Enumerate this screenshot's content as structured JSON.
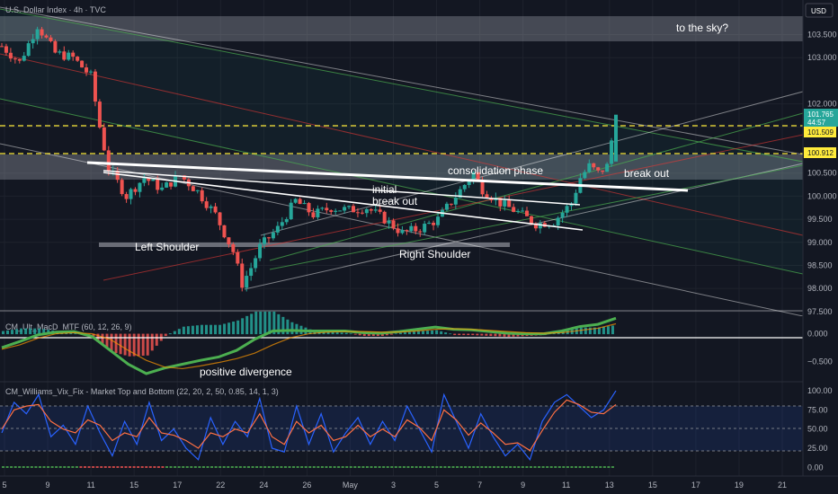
{
  "header": {
    "title": "U.S. Dollar Index · 4h · TVC",
    "currency": "USD"
  },
  "annotations": {
    "to_the_sky": "to the sky?",
    "consolidation": "consolidation phase",
    "initial_breakout_line1": "initial",
    "initial_breakout_line2": "break out",
    "break_out": "break out",
    "left_shoulder": "Left Shoulder",
    "right_shoulder": "Right Shoulder",
    "positive_divergence": "positive divergence"
  },
  "badges": {
    "last_price": "101.765",
    "countdown": "44:57",
    "level_upper": "101.509",
    "level_lower": "100.912"
  },
  "indicators": {
    "macd_title": "CM_Ult_MacD_MTF (60, 12, 26, 9)",
    "vix_title": "CM_Williams_Vix_Fix - Market Top and Bottom (22, 20, 2, 50, 0.85, 14, 1, 3)"
  },
  "colors": {
    "background": "#131722",
    "up_candle": "#26a69a",
    "down_candle": "#ef5350",
    "resistance_zone": "#b2b5be",
    "level_line": "#ffeb3b",
    "macd_green": "#4caf50",
    "macd_red": "#e53935",
    "vix_blue": "#2962ff",
    "vix_orange": "#ff7043"
  },
  "chart_data": [
    {
      "type": "candlestick",
      "title": "U.S. Dollar Index · 4h · TVC",
      "x_tick_labels": [
        "5",
        "9",
        "11",
        "15",
        "17",
        "22",
        "24",
        "26",
        "May",
        "3",
        "5",
        "7",
        "9",
        "11",
        "13",
        "15",
        "17",
        "19",
        "21"
      ],
      "y_tick_labels": [
        "103.500",
        "103.000",
        "102.000",
        "101.500",
        "100.500",
        "100.000",
        "99.500",
        "99.000",
        "98.500",
        "98.000",
        "97.500"
      ],
      "ylim": [
        97.4,
        104.25
      ],
      "price_path": [
        [
          0,
          103.25
        ],
        [
          2,
          102.9
        ],
        [
          4,
          103.7
        ],
        [
          6,
          103.1
        ],
        [
          8,
          103.0
        ],
        [
          10,
          102.6
        ],
        [
          11,
          101.5
        ],
        [
          12,
          100.6
        ],
        [
          14,
          100.0
        ],
        [
          16,
          100.4
        ],
        [
          18,
          100.15
        ],
        [
          20,
          100.45
        ],
        [
          22,
          100.1
        ],
        [
          24,
          99.6
        ],
        [
          26,
          98.8
        ],
        [
          27,
          98.1
        ],
        [
          28,
          98.45
        ],
        [
          29,
          98.9
        ],
        [
          31,
          99.3
        ],
        [
          33,
          99.9
        ],
        [
          35,
          99.6
        ],
        [
          37,
          99.75
        ],
        [
          39,
          99.7
        ],
        [
          41,
          99.75
        ],
        [
          43,
          99.5
        ],
        [
          45,
          99.2
        ],
        [
          47,
          99.3
        ],
        [
          49,
          99.5
        ],
        [
          51,
          100.0
        ],
        [
          53,
          100.5
        ],
        [
          54,
          100.15
        ],
        [
          56,
          99.85
        ],
        [
          58,
          99.65
        ],
        [
          60,
          99.4
        ],
        [
          62,
          99.45
        ],
        [
          64,
          99.85
        ],
        [
          65,
          100.4
        ],
        [
          66,
          100.65
        ],
        [
          67,
          100.5
        ],
        [
          68,
          100.65
        ],
        [
          69,
          101.765
        ]
      ],
      "levels": [
        101.509,
        100.912
      ],
      "resistance_zones": [
        [
          103.3,
          103.85
        ],
        [
          100.35,
          100.9
        ]
      ],
      "last_price": 101.765
    },
    {
      "type": "line",
      "title": "CM_Ult_MacD_MTF (60, 12, 26, 9)",
      "y_tick_labels": [
        "0.000",
        "−0.500"
      ],
      "ylim": [
        -0.85,
        0.35
      ],
      "series": [
        {
          "values": [
            -0.25,
            -0.14,
            -0.02,
            0.03,
            0.04,
            -0.05,
            -0.3,
            -0.55,
            -0.72,
            -0.62,
            -0.55,
            -0.48,
            -0.42,
            -0.3,
            -0.1,
            0.05,
            0.06,
            0.05,
            0.05,
            0.05,
            0.02,
            0.01,
            0.04,
            0.08,
            0.12,
            0.08,
            0.07,
            0.04,
            0.01,
            0.0,
            0.0,
            0.05,
            0.13,
            0.17,
            0.28
          ]
        },
        {
          "values": [
            -0.28,
            -0.2,
            -0.08,
            0.0,
            0.02,
            0.0,
            -0.1,
            -0.3,
            -0.48,
            -0.6,
            -0.63,
            -0.58,
            -0.52,
            -0.45,
            -0.35,
            -0.2,
            -0.07,
            0.0,
            0.03,
            0.04,
            0.04,
            0.03,
            0.03,
            0.05,
            0.08,
            0.09,
            0.08,
            0.06,
            0.04,
            0.02,
            0.01,
            0.02,
            0.06,
            0.1,
            0.18
          ]
        }
      ]
    },
    {
      "type": "line",
      "title": "CM_Williams_Vix_Fix - Market Top and Bottom (22, 20, 2, 50, 0.85, 14, 1, 3)",
      "y_tick_labels": [
        "100.00",
        "75.00",
        "50.00",
        "25.00",
        "0.00"
      ],
      "ylim": [
        -2,
        106
      ],
      "series": [
        {
          "values": [
            45,
            85,
            70,
            95,
            40,
            55,
            30,
            80,
            45,
            15,
            60,
            30,
            85,
            35,
            50,
            25,
            10,
            65,
            30,
            60,
            40,
            90,
            25,
            20,
            80,
            30,
            70,
            20,
            45,
            65,
            30,
            60,
            35,
            80,
            50,
            20,
            95,
            60,
            25,
            70,
            40,
            15,
            30,
            10,
            60,
            85,
            95,
            80,
            65,
            75,
            100
          ]
        },
        {
          "values": [
            50,
            75,
            80,
            82,
            60,
            50,
            45,
            62,
            55,
            35,
            45,
            40,
            65,
            45,
            42,
            35,
            25,
            45,
            40,
            50,
            45,
            70,
            40,
            30,
            60,
            45,
            55,
            35,
            40,
            55,
            40,
            50,
            40,
            62,
            52,
            35,
            75,
            62,
            42,
            58,
            45,
            30,
            32,
            22,
            48,
            72,
            88,
            82,
            72,
            70,
            82
          ]
        }
      ]
    }
  ]
}
